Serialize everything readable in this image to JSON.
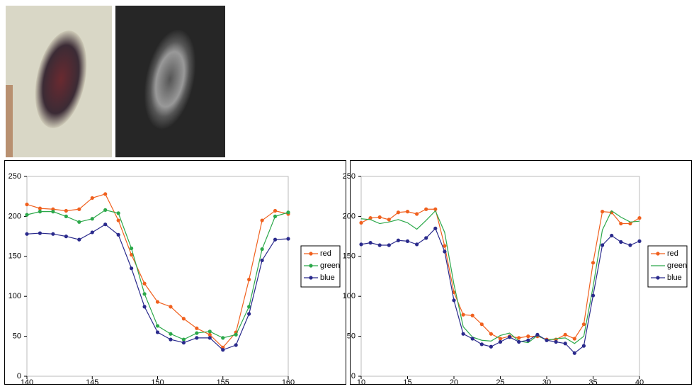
{
  "chart_data": [
    {
      "type": "line",
      "xlim": [
        140,
        160
      ],
      "xticks": [
        140,
        145,
        150,
        155,
        160
      ],
      "ylim": [
        0,
        250
      ],
      "yticks": [
        0,
        50,
        100,
        150,
        200,
        250
      ],
      "legend": "right",
      "x": [
        140,
        141,
        142,
        143,
        144,
        145,
        146,
        147,
        148,
        149,
        150,
        151,
        152,
        153,
        154,
        155,
        156,
        157,
        158,
        159,
        160
      ],
      "series": [
        {
          "name": "red",
          "color": "#f0601e",
          "marker": true,
          "values": [
            215,
            210,
            209,
            207,
            209,
            223,
            228,
            195,
            152,
            116,
            93,
            87,
            72,
            60,
            52,
            36,
            55,
            121,
            195,
            207,
            203
          ]
        },
        {
          "name": "green",
          "color": "#2ca84a",
          "marker": true,
          "values": [
            202,
            206,
            206,
            200,
            193,
            197,
            208,
            204,
            160,
            103,
            63,
            53,
            46,
            54,
            56,
            48,
            52,
            87,
            159,
            200,
            205
          ]
        },
        {
          "name": "blue",
          "color": "#2a2a8c",
          "marker": true,
          "values": [
            178,
            179,
            178,
            175,
            171,
            180,
            190,
            177,
            135,
            87,
            55,
            46,
            42,
            48,
            48,
            33,
            39,
            78,
            145,
            171,
            172
          ]
        }
      ]
    },
    {
      "type": "line",
      "xlim": [
        10,
        40
      ],
      "xticks": [
        10,
        15,
        20,
        25,
        30,
        35,
        40
      ],
      "ylim": [
        0,
        250
      ],
      "yticks": [
        0,
        50,
        100,
        150,
        200,
        250
      ],
      "legend": "right",
      "x": [
        10,
        11,
        12,
        13,
        14,
        15,
        16,
        17,
        18,
        19,
        20,
        21,
        22,
        23,
        24,
        25,
        26,
        27,
        28,
        29,
        30,
        31,
        32,
        33,
        34,
        35,
        36,
        37,
        38,
        39,
        40
      ],
      "series": [
        {
          "name": "red",
          "color": "#f0601e",
          "marker": true,
          "values": [
            192,
            198,
            199,
            196,
            205,
            206,
            203,
            209,
            209,
            163,
            105,
            77,
            76,
            65,
            53,
            47,
            50,
            48,
            50,
            50,
            46,
            46,
            52,
            47,
            65,
            142,
            206,
            205,
            191,
            191,
            198
          ]
        },
        {
          "name": "green",
          "color": "#2ca84a",
          "marker": false,
          "values": [
            197,
            196,
            191,
            193,
            196,
            192,
            184,
            195,
            207,
            180,
            115,
            62,
            49,
            45,
            44,
            51,
            54,
            44,
            42,
            51,
            45,
            47,
            48,
            41,
            50,
            112,
            183,
            207,
            199,
            193,
            194
          ]
        },
        {
          "name": "blue",
          "color": "#2a2a8c",
          "marker": true,
          "values": [
            165,
            167,
            164,
            164,
            170,
            169,
            165,
            173,
            185,
            156,
            95,
            53,
            47,
            40,
            37,
            43,
            49,
            43,
            45,
            52,
            45,
            43,
            41,
            29,
            38,
            101,
            164,
            176,
            168,
            164,
            169
          ]
        }
      ]
    }
  ]
}
